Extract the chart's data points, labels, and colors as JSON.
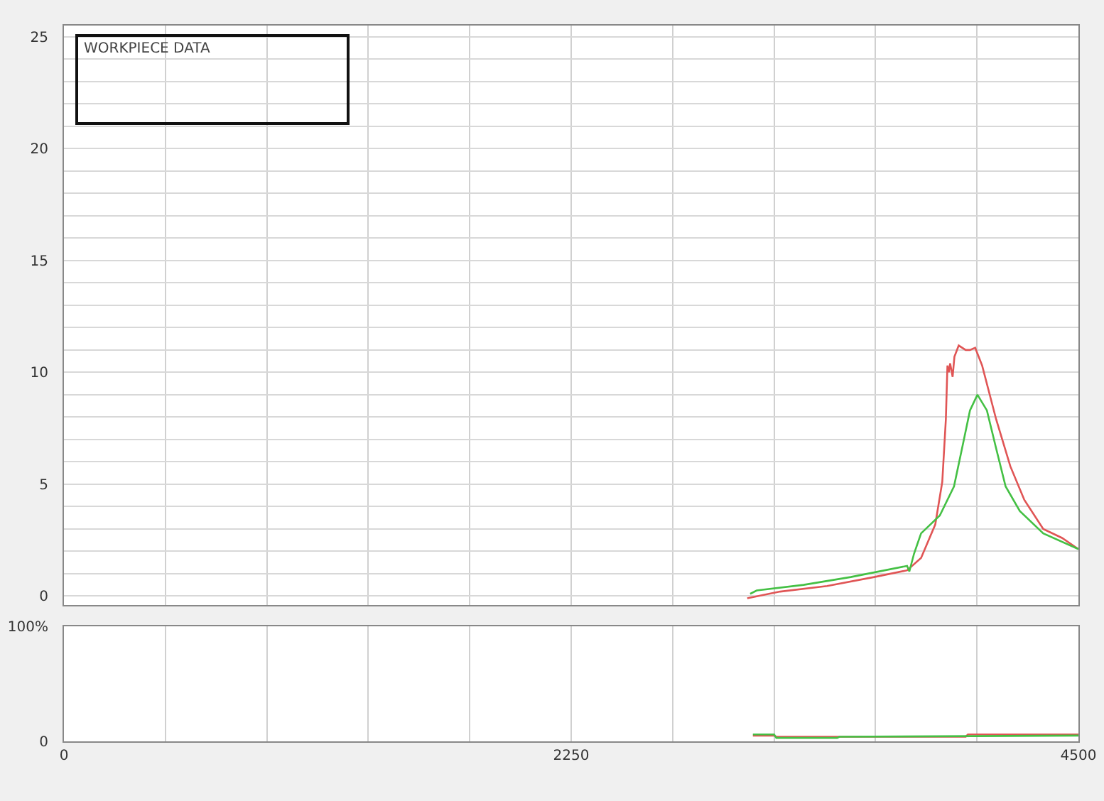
{
  "chart_data": [
    {
      "type": "line",
      "annotations": [
        "WORKPIECE DATA"
      ],
      "xlim": [
        0,
        4500
      ],
      "xticks": [
        0,
        {
          "value": 450,
          "label": null
        },
        {
          "value": 900,
          "label": null
        },
        {
          "value": 1350,
          "label": null
        },
        {
          "value": 1800,
          "label": null
        },
        2250,
        {
          "value": 2700,
          "label": null
        },
        {
          "value": 3150,
          "label": null
        },
        {
          "value": 3600,
          "label": null
        },
        {
          "value": 4050,
          "label": null
        },
        4500
      ],
      "ylim": [
        -0.4,
        25.5
      ],
      "yticks": [
        0,
        {
          "value": 1,
          "label": null
        },
        {
          "value": 2,
          "label": null
        },
        {
          "value": 3,
          "label": null
        },
        {
          "value": 4,
          "label": null
        },
        5,
        {
          "value": 6,
          "label": null
        },
        {
          "value": 7,
          "label": null
        },
        {
          "value": 8,
          "label": null
        },
        {
          "value": 9,
          "label": null
        },
        10,
        {
          "value": 11,
          "label": null
        },
        {
          "value": 12,
          "label": null
        },
        {
          "value": 13,
          "label": null
        },
        {
          "value": 14,
          "label": null
        },
        15,
        {
          "value": 16,
          "label": null
        },
        {
          "value": 17,
          "label": null
        },
        {
          "value": 18,
          "label": null
        },
        {
          "value": 19,
          "label": null
        },
        20,
        {
          "value": 21,
          "label": null
        },
        {
          "value": 22,
          "label": null
        },
        {
          "value": 23,
          "label": null
        },
        {
          "value": 24,
          "label": null
        },
        25
      ],
      "grid": true,
      "tick_labels": "y",
      "series": [
        {
          "color": "#e05555",
          "x": [
            3031,
            3177,
            3385,
            3594,
            3740,
            3802,
            3865,
            3896,
            3912,
            3919,
            3925,
            3931,
            3942,
            3950,
            3969,
            4000,
            4019,
            4042,
            4073,
            4135,
            4198,
            4260,
            4344,
            4427,
            4500
          ],
          "values": [
            -0.1,
            0.2,
            0.45,
            0.85,
            1.15,
            1.7,
            3.2,
            5.1,
            7.9,
            10.3,
            10.0,
            10.4,
            9.8,
            10.7,
            11.2,
            11.0,
            11.0,
            11.1,
            10.3,
            7.9,
            5.8,
            4.3,
            3.0,
            2.6,
            2.1
          ]
        },
        {
          "color": "#44c044",
          "x": [
            3044,
            3073,
            3281,
            3490,
            3740,
            3750,
            3771,
            3802,
            3885,
            3948,
            3990,
            4019,
            4052,
            4094,
            4135,
            4177,
            4240,
            4344,
            4500
          ],
          "values": [
            0.1,
            0.25,
            0.5,
            0.85,
            1.35,
            1.1,
            1.9,
            2.8,
            3.6,
            4.9,
            6.9,
            8.3,
            9.0,
            8.3,
            6.6,
            4.9,
            3.8,
            2.8,
            2.1
          ]
        }
      ]
    },
    {
      "type": "line",
      "xlim": [
        0,
        4500
      ],
      "xticks": [
        0,
        {
          "value": 450,
          "label": null
        },
        {
          "value": 900,
          "label": null
        },
        {
          "value": 1350,
          "label": null
        },
        {
          "value": 1800,
          "label": null
        },
        2250,
        {
          "value": 2700,
          "label": null
        },
        {
          "value": 3150,
          "label": null
        },
        {
          "value": 3600,
          "label": null
        },
        {
          "value": 4050,
          "label": null
        },
        4500
      ],
      "ylim": [
        0,
        100
      ],
      "yticks": [
        0,
        {
          "value": 100,
          "label": "100%"
        }
      ],
      "grid": "x",
      "series": [
        {
          "color": "#e05555",
          "x": [
            3056,
            3150,
            3160,
            4000,
            4010,
            4500
          ],
          "values": [
            5,
            5,
            4,
            4,
            6,
            6
          ]
        },
        {
          "color": "#44c044",
          "x": [
            3056,
            3150,
            3160,
            3430,
            3440,
            4500
          ],
          "values": [
            6,
            6,
            3,
            3,
            4,
            5
          ]
        }
      ]
    }
  ]
}
